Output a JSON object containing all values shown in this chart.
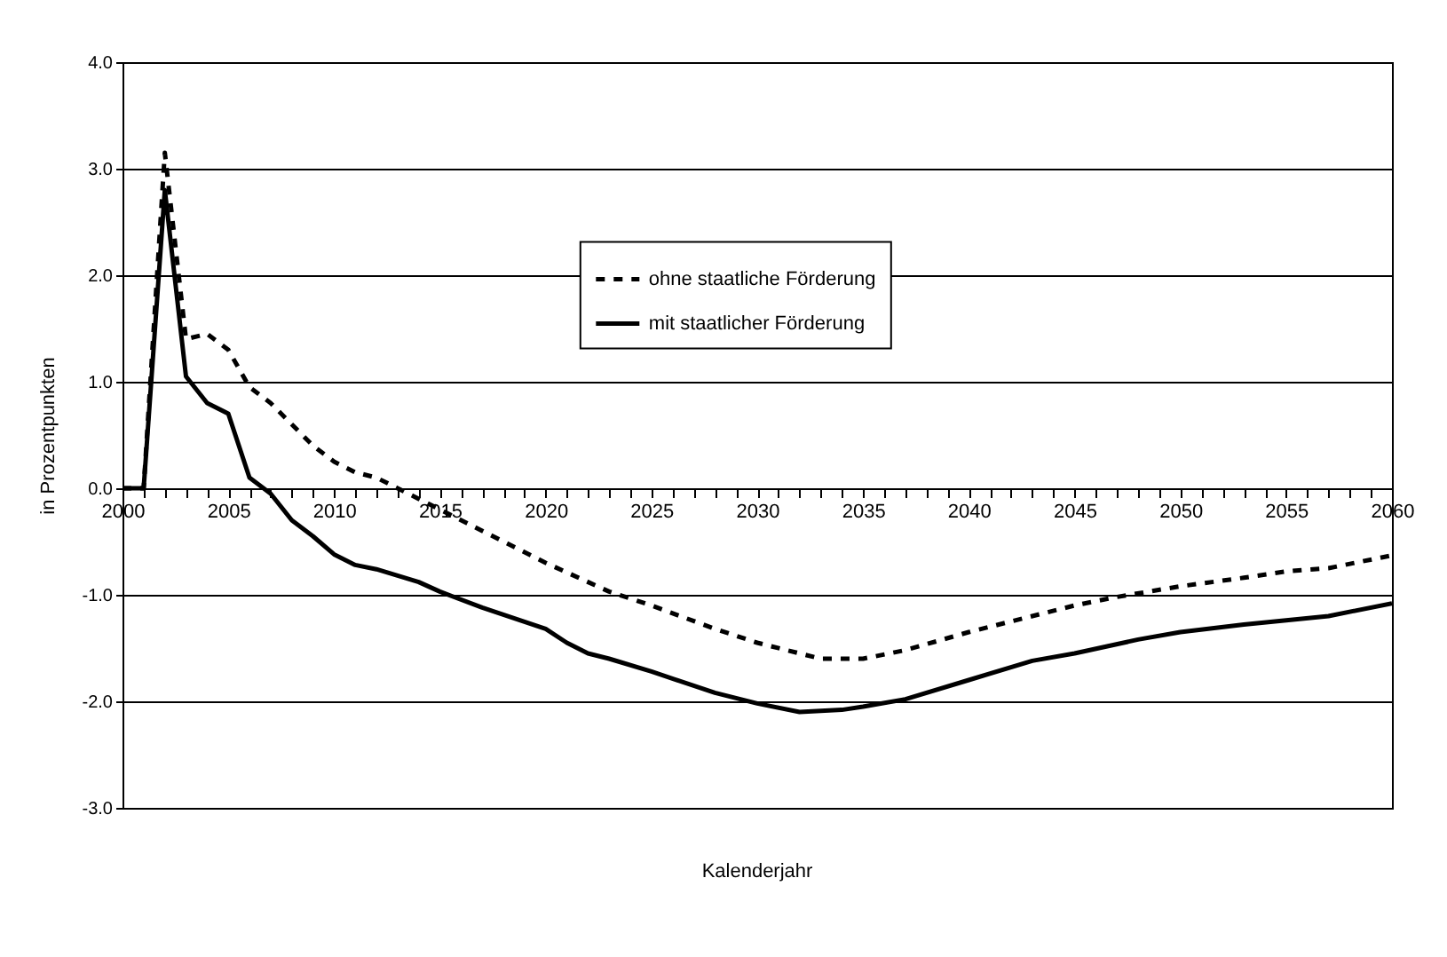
{
  "chart_data": {
    "type": "line",
    "xlabel": "Kalenderjahr",
    "ylabel": "in Prozentpunkten",
    "xlim": [
      2000,
      2060
    ],
    "ylim": [
      -3,
      4
    ],
    "xticks": [
      2000,
      {
        "value": 2001,
        "label": null
      },
      {
        "value": 2002,
        "label": null
      },
      {
        "value": 2003,
        "label": null
      },
      {
        "value": 2004,
        "label": null
      },
      2005,
      {
        "value": 2006,
        "label": null
      },
      {
        "value": 2007,
        "label": null
      },
      {
        "value": 2008,
        "label": null
      },
      {
        "value": 2009,
        "label": null
      },
      2010,
      {
        "value": 2011,
        "label": null
      },
      {
        "value": 2012,
        "label": null
      },
      {
        "value": 2013,
        "label": null
      },
      {
        "value": 2014,
        "label": null
      },
      2015,
      {
        "value": 2016,
        "label": null
      },
      {
        "value": 2017,
        "label": null
      },
      {
        "value": 2018,
        "label": null
      },
      {
        "value": 2019,
        "label": null
      },
      2020,
      {
        "value": 2021,
        "label": null
      },
      {
        "value": 2022,
        "label": null
      },
      {
        "value": 2023,
        "label": null
      },
      {
        "value": 2024,
        "label": null
      },
      2025,
      {
        "value": 2026,
        "label": null
      },
      {
        "value": 2027,
        "label": null
      },
      {
        "value": 2028,
        "label": null
      },
      {
        "value": 2029,
        "label": null
      },
      2030,
      {
        "value": 2031,
        "label": null
      },
      {
        "value": 2032,
        "label": null
      },
      {
        "value": 2033,
        "label": null
      },
      {
        "value": 2034,
        "label": null
      },
      2035,
      {
        "value": 2036,
        "label": null
      },
      {
        "value": 2037,
        "label": null
      },
      {
        "value": 2038,
        "label": null
      },
      {
        "value": 2039,
        "label": null
      },
      2040,
      {
        "value": 2041,
        "label": null
      },
      {
        "value": 2042,
        "label": null
      },
      {
        "value": 2043,
        "label": null
      },
      {
        "value": 2044,
        "label": null
      },
      2045,
      {
        "value": 2046,
        "label": null
      },
      {
        "value": 2047,
        "label": null
      },
      {
        "value": 2048,
        "label": null
      },
      {
        "value": 2049,
        "label": null
      },
      2050,
      {
        "value": 2051,
        "label": null
      },
      {
        "value": 2052,
        "label": null
      },
      {
        "value": 2053,
        "label": null
      },
      {
        "value": 2054,
        "label": null
      },
      2055,
      {
        "value": 2056,
        "label": null
      },
      {
        "value": 2057,
        "label": null
      },
      {
        "value": 2058,
        "label": null
      },
      {
        "value": 2059,
        "label": null
      },
      2060
    ],
    "yticks": [
      {
        "value": -3,
        "label": "-3.0"
      },
      {
        "value": -2,
        "label": "-2.0"
      },
      {
        "value": -1,
        "label": "-1.0"
      },
      {
        "value": 0,
        "label": "0.0"
      },
      {
        "value": 1,
        "label": "1.0"
      },
      {
        "value": 2,
        "label": "2.0"
      },
      {
        "value": 3,
        "label": "3.0"
      },
      {
        "value": 4,
        "label": "4.0"
      }
    ],
    "grid": "y",
    "legend": "center",
    "marker": "none",
    "series": [
      {
        "name": "ohne staatliche Förderung",
        "color": "#000000",
        "line_style": "dashed",
        "x": [
          2000,
          2001,
          2002,
          2003,
          2004,
          2005,
          2006,
          2007,
          2008,
          2009,
          2010,
          2011,
          2012,
          2013,
          2014,
          2015,
          2017,
          2020,
          2023,
          2025,
          2028,
          2030,
          2033,
          2035,
          2037,
          2040,
          2043,
          2045,
          2047,
          2050,
          2053,
          2055,
          2057,
          2060
        ],
        "values": [
          0,
          0,
          3.15,
          1.4,
          1.45,
          1.3,
          0.95,
          0.8,
          0.6,
          0.4,
          0.25,
          0.15,
          0.1,
          0.0,
          -0.1,
          -0.2,
          -0.4,
          -0.7,
          -0.97,
          -1.1,
          -1.32,
          -1.45,
          -1.6,
          -1.6,
          -1.52,
          -1.35,
          -1.2,
          -1.1,
          -1.02,
          -0.92,
          -0.84,
          -0.78,
          -0.75,
          -0.63
        ]
      },
      {
        "name": "mit staatlicher Förderung",
        "color": "#000000",
        "line_style": "solid",
        "x": [
          2000,
          2001,
          2002,
          2003,
          2004,
          2005,
          2006,
          2007,
          2008,
          2009,
          2010,
          2011,
          2012,
          2013,
          2014,
          2015,
          2017,
          2020,
          2021,
          2022,
          2023,
          2025,
          2028,
          2030,
          2032,
          2034,
          2035,
          2037,
          2040,
          2043,
          2045,
          2048,
          2050,
          2053,
          2055,
          2057,
          2060
        ],
        "values": [
          0,
          0,
          2.8,
          1.05,
          0.8,
          0.7,
          0.1,
          -0.05,
          -0.3,
          -0.45,
          -0.62,
          -0.72,
          -0.76,
          -0.82,
          -0.88,
          -0.97,
          -1.12,
          -1.32,
          -1.45,
          -1.55,
          -1.6,
          -1.72,
          -1.92,
          -2.02,
          -2.1,
          -2.08,
          -2.05,
          -1.98,
          -1.8,
          -1.62,
          -1.55,
          -1.42,
          -1.35,
          -1.28,
          -1.24,
          -1.2,
          -1.08
        ]
      }
    ]
  }
}
